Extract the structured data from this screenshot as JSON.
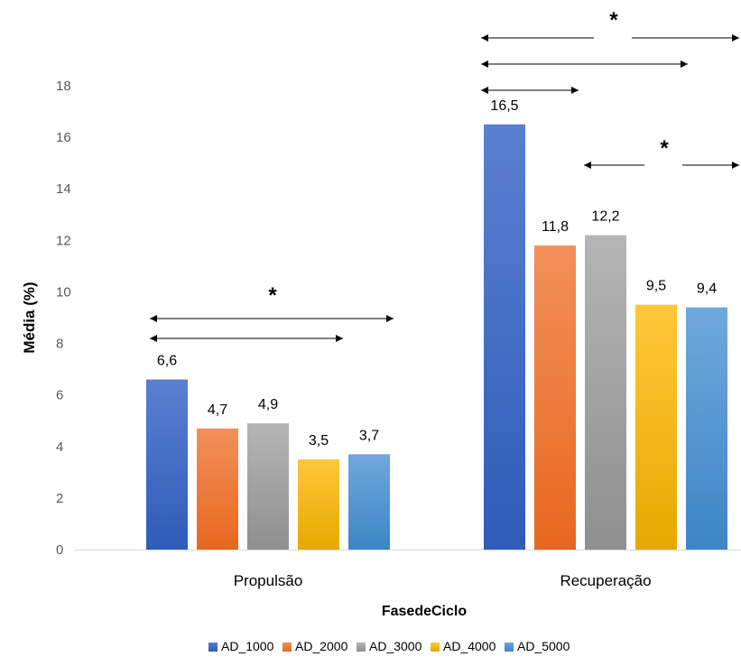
{
  "chart_data": {
    "type": "bar",
    "categories": [
      "Propulsão",
      "Recuperação"
    ],
    "series": [
      {
        "name": "AD_1000",
        "values": [
          6.6,
          16.5
        ],
        "labels": [
          "6,6",
          "16,5"
        ],
        "color_top": "#5b7fd0",
        "color_bottom": "#2e5cb8"
      },
      {
        "name": "AD_2000",
        "values": [
          4.7,
          11.8
        ],
        "labels": [
          "4,7",
          "11,8"
        ],
        "color_top": "#f2905a",
        "color_bottom": "#e8671f"
      },
      {
        "name": "AD_3000",
        "values": [
          4.9,
          12.2
        ],
        "labels": [
          "4,9",
          "12,2"
        ],
        "color_top": "#b5b5b5",
        "color_bottom": "#8f8f8f"
      },
      {
        "name": "AD_4000",
        "values": [
          3.5,
          9.5
        ],
        "labels": [
          "3,5",
          "9,5"
        ],
        "color_top": "#ffc83a",
        "color_bottom": "#e6a800"
      },
      {
        "name": "AD_5000",
        "values": [
          3.7,
          9.4
        ],
        "labels": [
          "3,7",
          "9,4"
        ],
        "color_top": "#6fa8dc",
        "color_bottom": "#3d85c6"
      }
    ],
    "xlabel": "FasedeCiclo",
    "ylabel": "Média (%)",
    "ylim": [
      0,
      18
    ],
    "yticks": [
      0,
      2,
      4,
      6,
      8,
      10,
      12,
      14,
      16,
      18
    ],
    "legend_position": "bottom",
    "grid": false,
    "significance": {
      "symbol": "*",
      "brackets": [
        {
          "category": 0,
          "from_series": 0,
          "to_series": 4,
          "star": true
        },
        {
          "category": 0,
          "from_series": 0,
          "to_series": 3,
          "star": false
        },
        {
          "category": 1,
          "from_series": 0,
          "to_series": 4,
          "star": true
        },
        {
          "category": 1,
          "from_series": 0,
          "to_series": 3,
          "star": false
        },
        {
          "category": 1,
          "from_series": 0,
          "to_series": 1,
          "star": false
        },
        {
          "category": 1,
          "from_series": 2,
          "to_series": 4,
          "star": true
        }
      ]
    },
    "colors": {
      "axis": "#d9d9d9",
      "tick_text": "#595959",
      "label_text": "#000000"
    }
  }
}
